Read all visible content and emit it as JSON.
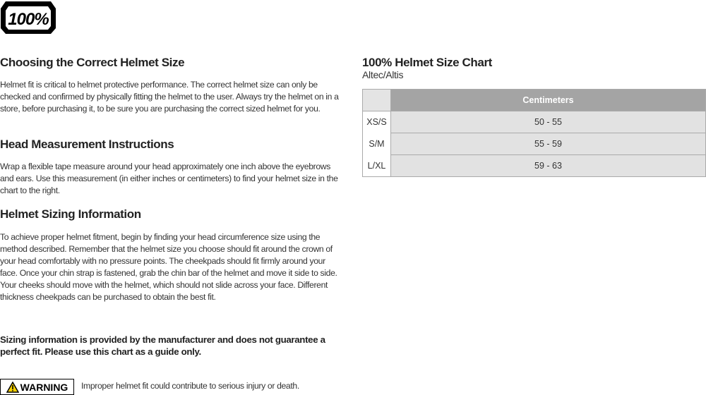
{
  "logo": {
    "text": "100%"
  },
  "left": {
    "sections": [
      {
        "title": "Choosing the Correct Helmet Size",
        "body": "Helmet fit is critical to helmet protective performance. The correct helmet size can only be checked and confirmed by physically fitting the helmet to the user. Always try the helmet on in a store, before purchasing it, to be sure you are purchasing the correct sized helmet for you."
      },
      {
        "title": "Head Measurement Instructions",
        "body": "Wrap a flexible tape measure around your head approximately one inch above the eyebrows and ears. Use this measurement (in either inches or centimeters) to find your helmet size in the chart to the right."
      },
      {
        "title": "Helmet Sizing Information",
        "body": "To achieve proper helmet fitment, begin by finding your head circumference size using the method described. Remember that the helmet size you choose should fit around the crown of your head comfortably with no pressure points. The cheekpads should fit firmly around your face. Once your chin strap is fastened, grab the chin bar of the helmet and move it side to side. Your cheeks should move with the helmet, which should not slide across your face. Different thickness cheekpads can be purchased to obtain the best fit."
      }
    ],
    "disclaimer": "Sizing information is provided by the manufacturer and does not guarantee a perfect fit. Please use this chart as a guide only.",
    "warning": {
      "label": "WARNING",
      "icon": "warning-triangle-icon",
      "text": "Improper helmet fit could contribute to serious injury or death."
    }
  },
  "chart": {
    "title": "100% Helmet Size Chart",
    "subtitle": "Altec/Altis",
    "header": "Centimeters",
    "rows": [
      {
        "size": "XS/S",
        "cm": "50 - 55"
      },
      {
        "size": "S/M",
        "cm": "55 - 59"
      },
      {
        "size": "L/XL",
        "cm": "59 - 63"
      }
    ]
  }
}
